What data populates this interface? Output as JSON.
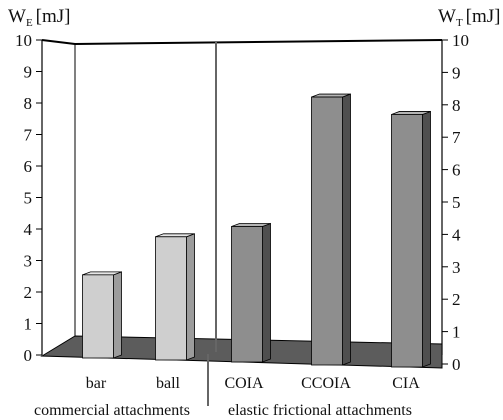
{
  "chart_data": {
    "type": "bar",
    "style": "3d",
    "categories": [
      "bar",
      "ball",
      "COIA",
      "CCOIA",
      "CIA"
    ],
    "values": [
      2.7,
      4.0,
      4.4,
      8.7,
      8.2
    ],
    "ylim": [
      0,
      10
    ],
    "yticks": [
      0,
      1,
      2,
      3,
      4,
      5,
      6,
      7,
      8,
      9,
      10
    ],
    "ylabel_left": {
      "main": "W",
      "sub": "E",
      "unit": "[mJ]"
    },
    "ylabel_right": {
      "main": "W",
      "sub": "T",
      "unit": "[mJ]"
    },
    "grid": false,
    "groups": [
      {
        "label": "commercial attachments",
        "categories": [
          "bar",
          "ball"
        ]
      },
      {
        "label": "elastic frictional attachments",
        "categories": [
          "COIA",
          "CCOIA",
          "CIA"
        ]
      }
    ],
    "colors": {
      "commercial_front": "#cfcfcf",
      "commercial_side": "#9c9c9c",
      "commercial_top": "#e6e6e6",
      "elastic_front": "#8e8e8e",
      "elastic_side": "#4f4f4f",
      "elastic_top": "#b5b5b5",
      "floor": "#5c5c5c"
    }
  }
}
